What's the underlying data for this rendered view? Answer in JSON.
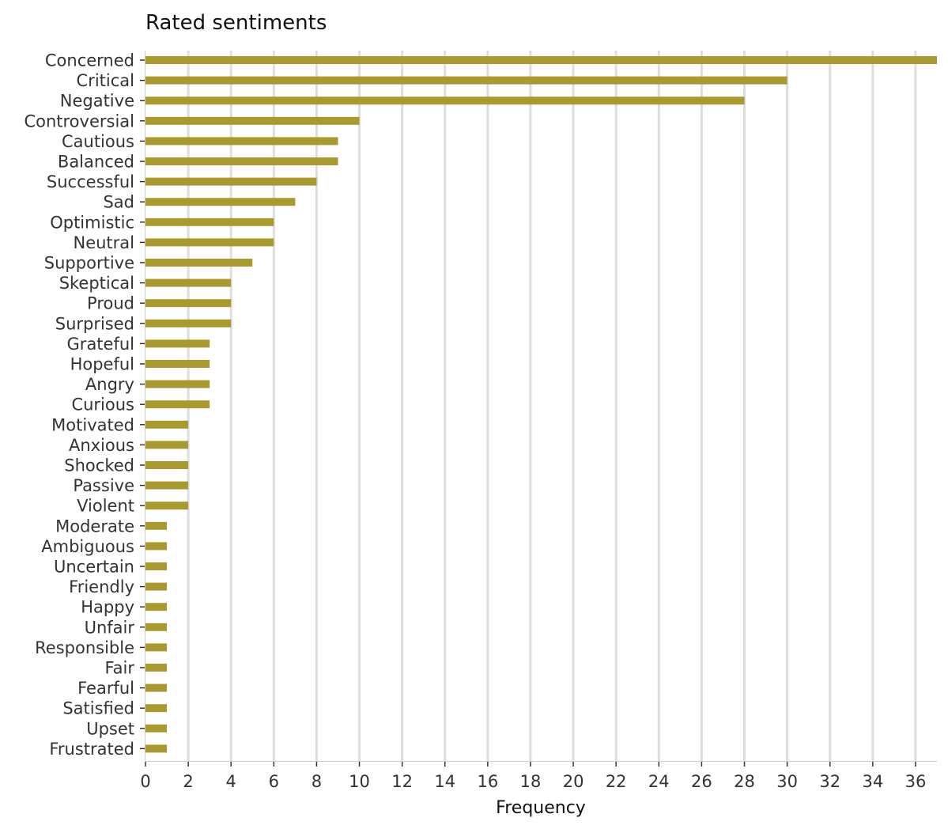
{
  "chart_data": {
    "type": "bar",
    "orientation": "horizontal",
    "title": "Rated sentiments",
    "xlabel": "Frequency",
    "ylabel": "",
    "xlim": [
      0,
      37
    ],
    "x_ticks": [
      0,
      2,
      4,
      6,
      8,
      10,
      12,
      14,
      16,
      18,
      20,
      22,
      24,
      26,
      28,
      30,
      32,
      34,
      36
    ],
    "grid": "vertical",
    "bar_color": "#a89a30",
    "grid_color": "#dddddd",
    "categories": [
      "Concerned",
      "Critical",
      "Negative",
      "Controversial",
      "Cautious",
      "Balanced",
      "Successful",
      "Sad",
      "Optimistic",
      "Neutral",
      "Supportive",
      "Skeptical",
      "Proud",
      "Surprised",
      "Grateful",
      "Hopeful",
      "Angry",
      "Curious",
      "Motivated",
      "Anxious",
      "Shocked",
      "Passive",
      "Violent",
      "Moderate",
      "Ambiguous",
      "Uncertain",
      "Friendly",
      "Happy",
      "Unfair",
      "Responsible",
      "Fair",
      "Fearful",
      "Satisfied",
      "Upset",
      "Frustrated"
    ],
    "values": [
      37,
      30,
      28,
      10,
      9,
      9,
      8,
      7,
      6,
      6,
      5,
      4,
      4,
      4,
      3,
      3,
      3,
      3,
      2,
      2,
      2,
      2,
      2,
      1,
      1,
      1,
      1,
      1,
      1,
      1,
      1,
      1,
      1,
      1,
      1
    ]
  }
}
